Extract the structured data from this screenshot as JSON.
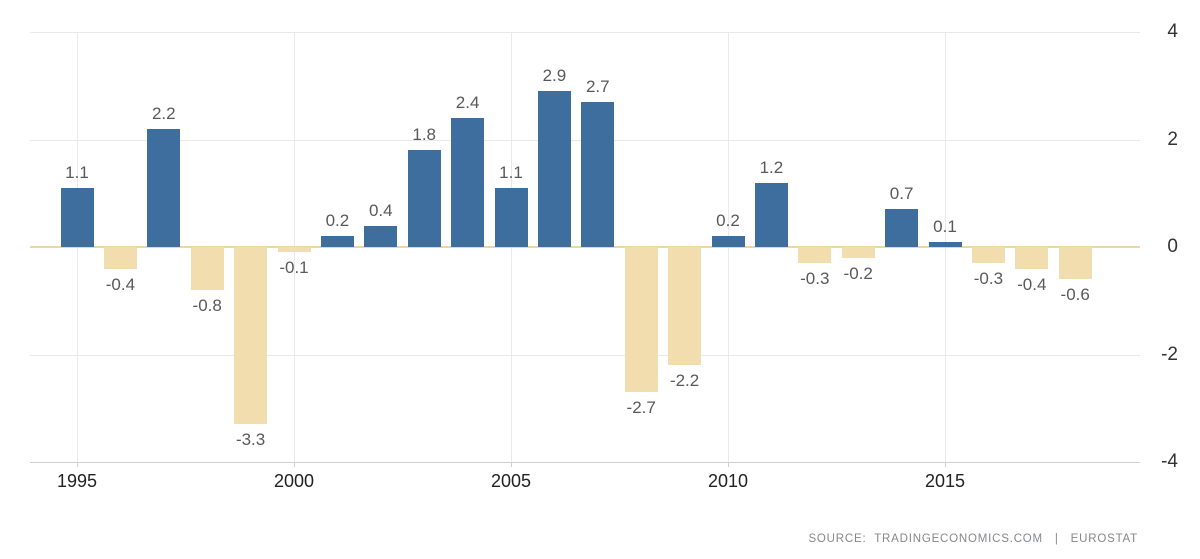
{
  "chart_data": {
    "type": "bar",
    "title": "",
    "xlabel": "",
    "ylabel": "",
    "categories": [
      "1995",
      "1996",
      "1997",
      "1998",
      "1999",
      "2000",
      "2001",
      "2002",
      "2003",
      "2004",
      "2005",
      "2006",
      "2007",
      "2008",
      "2009",
      "2010",
      "2011",
      "2012",
      "2013",
      "2014",
      "2015",
      "2016",
      "2017",
      "2018"
    ],
    "values": [
      1.1,
      -0.4,
      2.2,
      -0.8,
      -3.3,
      -0.1,
      0.2,
      0.4,
      1.8,
      2.4,
      1.1,
      2.9,
      2.7,
      -2.7,
      -2.2,
      0.2,
      1.2,
      -0.3,
      -0.2,
      0.7,
      0.1,
      -0.3,
      -0.4,
      -0.6
    ],
    "x_tick_labels": [
      "1995",
      "2000",
      "2005",
      "2010",
      "2015"
    ],
    "y_tick_labels": [
      "4",
      "2",
      "0",
      "-2",
      "-4"
    ],
    "ylim": [
      -4,
      4
    ],
    "grid": true,
    "legend": "none",
    "positive_color": "#3e6e9e",
    "negative_color": "#f2ddae",
    "zero_line_color": "#ead7a4",
    "value_label_color": "#58595b"
  },
  "footer": {
    "source_text": "SOURCE:  TRADINGECONOMICS.COM   |   EUROSTAT"
  }
}
